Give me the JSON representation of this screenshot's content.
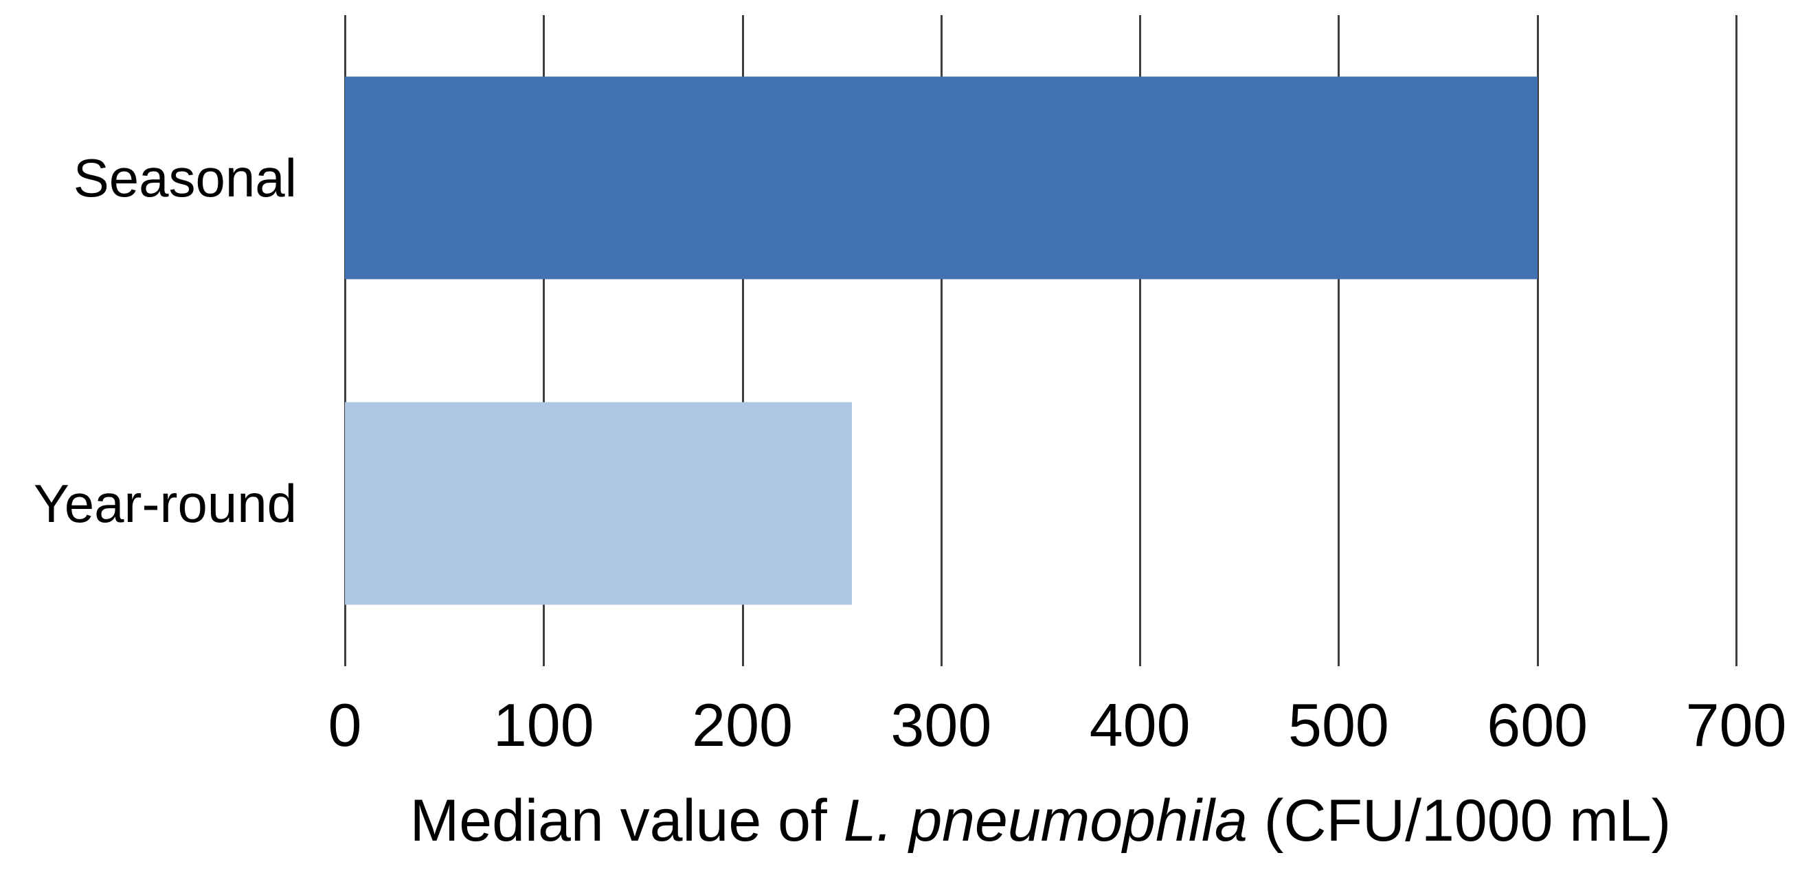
{
  "chart_data": {
    "type": "bar",
    "orientation": "horizontal",
    "categories": [
      "Seasonal",
      "Year-round"
    ],
    "values": [
      600,
      255
    ],
    "bar_colors": [
      "#4273b0",
      "#afc6e2"
    ],
    "xlabel": "Median value of L. pneumophila (CFU/1000 mL)",
    "xlabel_parts": {
      "prefix": "Median value of ",
      "italic": "L. pneumophila",
      "suffix": " (CFU/1000 mL)"
    },
    "ylabel": "",
    "title": "",
    "xlim": [
      0,
      700
    ],
    "xticks": [
      "0",
      "100",
      "200",
      "300",
      "400",
      "500",
      "600",
      "700"
    ],
    "xtick_values": [
      0,
      100,
      200,
      300,
      400,
      500,
      600,
      700
    ],
    "grid": "full-height vertical gridlines at every x tick",
    "legend": "none",
    "colors": {
      "gridline": "#3d3d3d",
      "text": "#000000",
      "background": "#ffffff"
    }
  }
}
